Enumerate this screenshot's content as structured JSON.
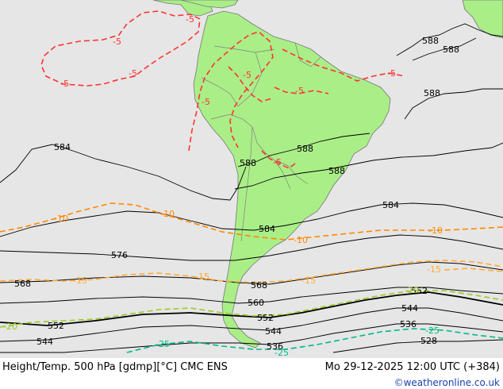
{
  "footer": {
    "title": "Height/Temp. 500 hPa [gdmp][°C] CMC ENS",
    "valid_time": "Mo 29-12-2025 12:00 UTC (+384)",
    "credit": "©weatheronline.co.uk"
  },
  "colors": {
    "land": "#aaee88",
    "sea": "#e6e6e6",
    "border": "#808080",
    "height_contour": "#000000",
    "temp_minus5": "#ff3333",
    "temp_minus10": "#ff8800",
    "temp_minus15": "#ffaa33",
    "temp_minus20": "#99cc22",
    "temp_minus25": "#00bb88"
  },
  "height_labels": [
    {
      "id": "588-a",
      "text": "588"
    },
    {
      "id": "588-b",
      "text": "588"
    },
    {
      "id": "588-c",
      "text": "588"
    },
    {
      "id": "588-d",
      "text": "588"
    },
    {
      "id": "588-e",
      "text": "588"
    },
    {
      "id": "588-f",
      "text": "588"
    },
    {
      "id": "584-a",
      "text": "584"
    },
    {
      "id": "584-b",
      "text": "584"
    },
    {
      "id": "584-c",
      "text": "584"
    },
    {
      "id": "576",
      "text": "576"
    },
    {
      "id": "568-a",
      "text": "568"
    },
    {
      "id": "568-b",
      "text": "568"
    },
    {
      "id": "560",
      "text": "560"
    },
    {
      "id": "552-a",
      "text": "552"
    },
    {
      "id": "552-b",
      "text": "552"
    },
    {
      "id": "552-c",
      "text": "552"
    },
    {
      "id": "544-a",
      "text": "544"
    },
    {
      "id": "544-b",
      "text": "544"
    },
    {
      "id": "544-c",
      "text": "544"
    },
    {
      "id": "536-a",
      "text": "536"
    },
    {
      "id": "536-b",
      "text": "536"
    },
    {
      "id": "528",
      "text": "528"
    }
  ],
  "temp_labels": [
    {
      "id": "m5-a",
      "text": "-5"
    },
    {
      "id": "m5-b",
      "text": "-5"
    },
    {
      "id": "m5-c",
      "text": "-5"
    },
    {
      "id": "m5-d",
      "text": "-5"
    },
    {
      "id": "m5-e",
      "text": "-5"
    },
    {
      "id": "m5-f",
      "text": "-5"
    },
    {
      "id": "m5-g",
      "text": "-5"
    },
    {
      "id": "m5-h",
      "text": "-5"
    },
    {
      "id": "m5-i",
      "text": "-5"
    },
    {
      "id": "m10-a",
      "text": "-10"
    },
    {
      "id": "m10-b",
      "text": "-10"
    },
    {
      "id": "m10-c",
      "text": "-10"
    },
    {
      "id": "m10-d",
      "text": "-10"
    },
    {
      "id": "m15-a",
      "text": "-15"
    },
    {
      "id": "m15-b",
      "text": "-15"
    },
    {
      "id": "m15-c",
      "text": "-15"
    },
    {
      "id": "m15-d",
      "text": "-15"
    },
    {
      "id": "m20-a",
      "text": "-20"
    },
    {
      "id": "m20-b",
      "text": "-20"
    },
    {
      "id": "m25-a",
      "text": "-25"
    },
    {
      "id": "m25-b",
      "text": "-25"
    },
    {
      "id": "m25-c",
      "text": "-25"
    }
  ]
}
